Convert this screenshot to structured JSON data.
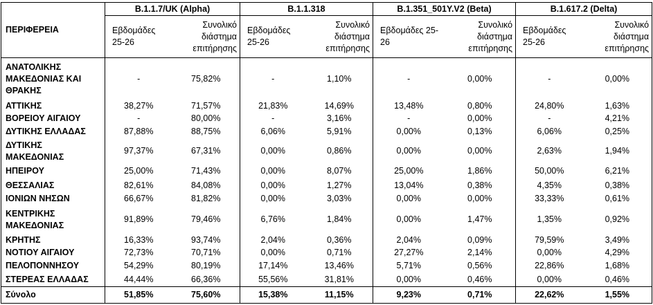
{
  "header": {
    "region": "ΠΕΡΙΦΕΡΕΙΑ",
    "variants": [
      "B.1.1.7/UK  (Alpha)",
      "B.1.1.318",
      "B.1.351_501Y.V2 (Beta)",
      "B.1.617.2 (Delta)"
    ],
    "subheaders": [
      "Εβδομάδες 25-26",
      "Συνολικό διάστημα επιτήρησης",
      "Εβδομάδες 25-26",
      "Συνολικό διάστημα επιτήρησης",
      "Εβδομάδες 25-26",
      "Συνολικό διάστημα επιτήρησης",
      "Εβδομάδες 25-26",
      "Συνολικό διάστημα επιτήρησης"
    ]
  },
  "table": {
    "rows": [
      [
        "ΑΝΑΤΟΛΙΚΗΣ ΜΑΚΕΔΟΝΙΑΣ ΚΑΙ ΘΡΑΚΗΣ",
        "-",
        "75,82%",
        "-",
        "1,10%",
        "-",
        "0,00%",
        "-",
        "0,00%"
      ],
      [
        "ΑΤΤΙΚΗΣ",
        "38,27%",
        "71,57%",
        "21,83%",
        "14,69%",
        "13,48%",
        "0,80%",
        "24,80%",
        "1,63%"
      ],
      [
        "ΒΟΡΕΙΟΥ ΑΙΓΑΙΟΥ",
        "-",
        "80,00%",
        "-",
        "3,16%",
        "-",
        "0,00%",
        "-",
        "4,21%"
      ],
      [
        "ΔΥΤΙΚΗΣ ΕΛΛΑΔΑΣ",
        "87,88%",
        "88,75%",
        "6,06%",
        "5,91%",
        "0,00%",
        "0,13%",
        "6,06%",
        "0,25%"
      ],
      [
        "ΔΥΤΙΚΗΣ ΜΑΚΕΔΟΝΙΑΣ",
        "97,37%",
        "67,31%",
        "0,00%",
        "0,86%",
        "0,00%",
        "0,00%",
        "2,63%",
        "1,94%"
      ],
      [
        "ΗΠΕΙΡΟΥ",
        "25,00%",
        "71,43%",
        "0,00%",
        "8,07%",
        "25,00%",
        "1,86%",
        "50,00%",
        "6,21%"
      ],
      [
        "ΘΕΣΣΑΛΙΑΣ",
        "82,61%",
        "84,08%",
        "0,00%",
        "1,27%",
        "13,04%",
        "0,38%",
        "4,35%",
        "0,38%"
      ],
      [
        "ΙΟΝΙΩΝ ΝΗΣΩΝ",
        "66,67%",
        "81,82%",
        "0,00%",
        "3,03%",
        "0,00%",
        "0,00%",
        "33,33%",
        "0,61%"
      ],
      [
        "ΚΕΝΤΡΙΚΗΣ ΜΑΚΕΔΟΝΙΑΣ",
        "91,89%",
        "79,46%",
        "6,76%",
        "1,84%",
        "0,00%",
        "1,47%",
        "1,35%",
        "0,92%"
      ],
      [
        "ΚΡΗΤΗΣ",
        "16,33%",
        "93,74%",
        "2,04%",
        "0,36%",
        "2,04%",
        "0,09%",
        "79,59%",
        "3,49%"
      ],
      [
        "ΝΟΤΙΟΥ ΑΙΓΑΙΟΥ",
        "72,73%",
        "70,71%",
        "0,00%",
        "0,71%",
        "27,27%",
        "2,14%",
        "0,00%",
        "4,29%"
      ],
      [
        "ΠΕΛΟΠΟΝΝΗΣΟΥ",
        "54,29%",
        "80,19%",
        "17,14%",
        "13,46%",
        "5,71%",
        "0,56%",
        "22,86%",
        "1,68%"
      ],
      [
        "ΣΤΕΡΕΑΣ ΕΛΛΑΔΑΣ",
        "44,44%",
        "66,36%",
        "55,56%",
        "31,81%",
        "0,00%",
        "0,46%",
        "0,00%",
        "0,46%"
      ]
    ],
    "total": [
      "Σύνολο",
      "51,85%",
      "75,60%",
      "15,38%",
      "11,15%",
      "9,23%",
      "0,71%",
      "22,62%",
      "1,55%"
    ]
  }
}
